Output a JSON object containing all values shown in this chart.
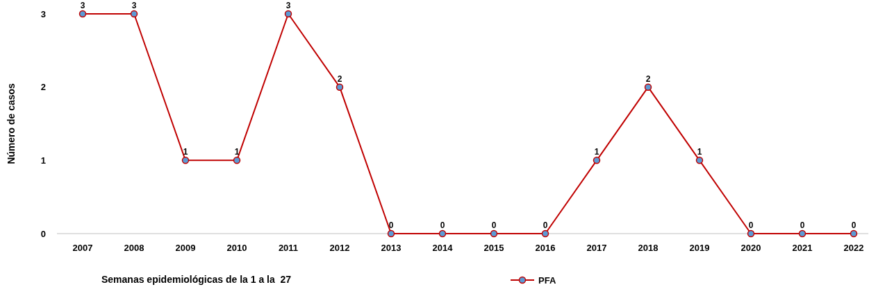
{
  "chart_data": {
    "type": "line",
    "ylabel": "Número de casos",
    "xlabel": "Semanas epidemiológicas de la 1 a la  27",
    "categories": [
      "2007",
      "2008",
      "2009",
      "2010",
      "2011",
      "2012",
      "2013",
      "2014",
      "2015",
      "2016",
      "2017",
      "2018",
      "2019",
      "2020",
      "2021",
      "2022"
    ],
    "series": [
      {
        "name": "PFA",
        "color": "#c00000",
        "values": [
          3,
          3,
          1,
          1,
          3,
          2,
          0,
          0,
          0,
          0,
          1,
          2,
          1,
          0,
          0,
          0
        ]
      }
    ],
    "ylim": [
      0,
      3
    ],
    "yticks": [
      0,
      1,
      2,
      3
    ],
    "grid": false,
    "legend": "bottom",
    "marker": "circle",
    "line_style": "solid",
    "data_labels": true
  }
}
